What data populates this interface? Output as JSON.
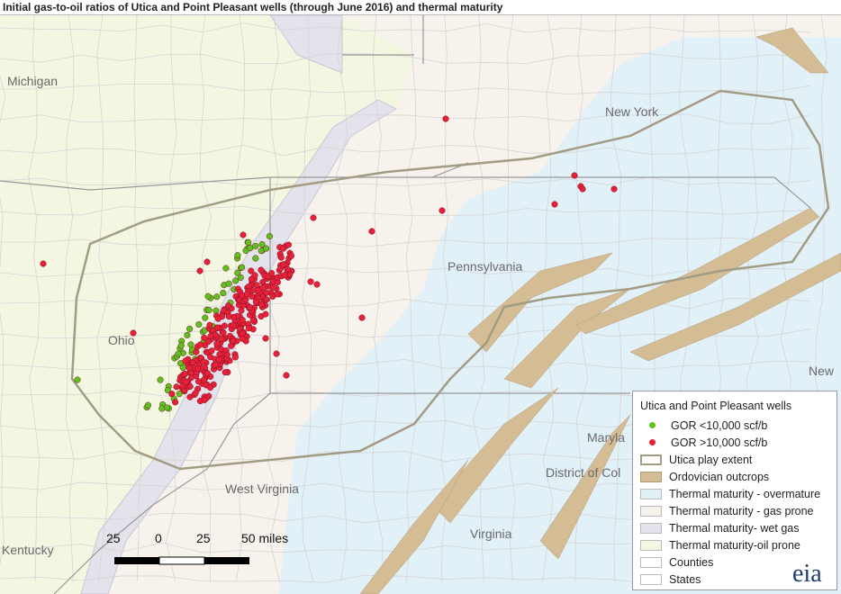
{
  "title": "Initial gas-to-oil ratios of Utica and Point Pleasant wells (through June 2016) and thermal maturity",
  "map_labels": {
    "michigan": "Michigan",
    "new_york": "New York",
    "pennsylvania": "Pennsylvania",
    "ohio": "Ohio",
    "west_virginia": "West Virginia",
    "kentucky": "Kentucky",
    "maryland": "Maryla",
    "district_of_columbia": "District of Col",
    "virginia": "Virginia",
    "new_jersey": "New"
  },
  "legend": {
    "title": "Utica and Point Pleasant wells",
    "items": [
      {
        "label": "GOR <10,000 scf/b",
        "type": "dot",
        "color": "#5cc31e"
      },
      {
        "label": "GOR >10,000 scf/b",
        "type": "dot",
        "color": "#e8203a"
      },
      {
        "label": "Utica play extent",
        "type": "outline",
        "color": "#a39c84"
      },
      {
        "label": "Ordovician outcrops",
        "type": "fill",
        "color": "#d4bc94"
      },
      {
        "label": "Thermal maturity - overmature",
        "type": "fill",
        "color": "#e2f0f8"
      },
      {
        "label": "Thermal maturity - gas prone",
        "type": "fill",
        "color": "#f7f2ec"
      },
      {
        "label": "Thermal maturity- wet gas",
        "type": "fill",
        "color": "#e4e3ec"
      },
      {
        "label": "Thermal maturity-oil prone",
        "type": "fill",
        "color": "#f3f7e2"
      },
      {
        "label": "Counties",
        "type": "fill",
        "color": "#ffffff"
      },
      {
        "label": "States",
        "type": "fill",
        "color": "#ffffff"
      }
    ]
  },
  "scale_bar": {
    "labels": [
      "25",
      "0",
      "25",
      "50 miles"
    ]
  },
  "logo": "eia"
}
